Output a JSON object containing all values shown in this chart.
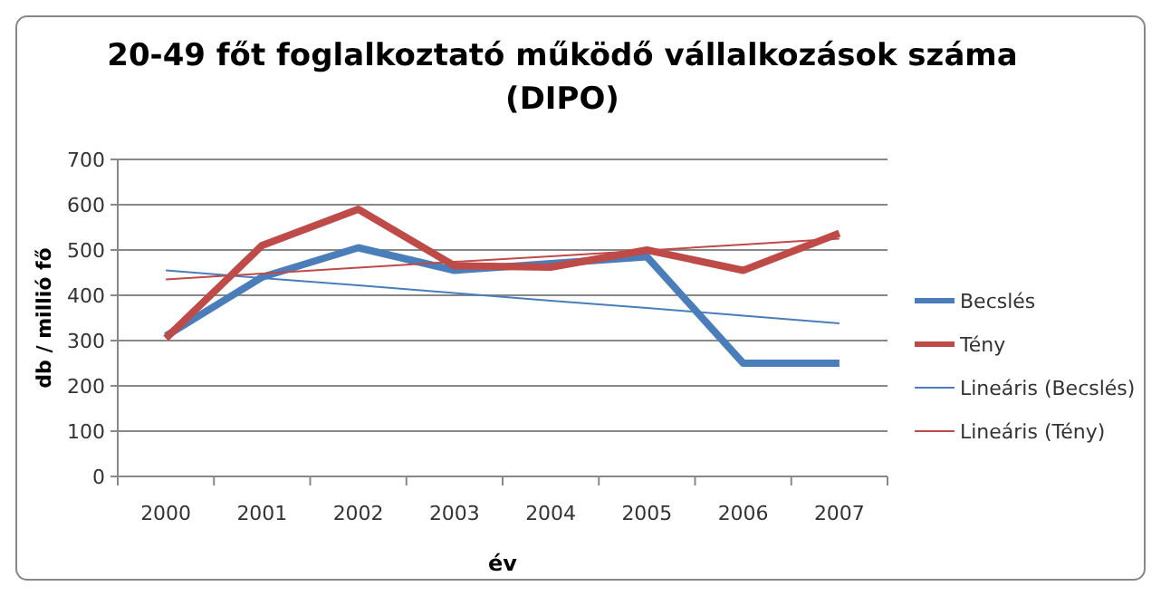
{
  "chart_data": {
    "type": "line",
    "title": "20-49 főt foglalkoztató  működő  vállalkozások  száma (DIPO)",
    "xlabel": "év",
    "ylabel": "db / millió fő",
    "categories": [
      "2000",
      "2001",
      "2002",
      "2003",
      "2004",
      "2005",
      "2006",
      "2007"
    ],
    "series": [
      {
        "name": "Becslés",
        "color": "#4a7ebb",
        "values": [
          310,
          440,
          505,
          455,
          470,
          485,
          250,
          250
        ]
      },
      {
        "name": "Tény",
        "color": "#be4b48",
        "values": [
          305,
          510,
          590,
          465,
          462,
          500,
          455,
          537
        ]
      },
      {
        "name": "Lineáris (Becslés)",
        "color": "#4a7ebb",
        "values": [
          455,
          438,
          422,
          405,
          388,
          372,
          355,
          338
        ]
      },
      {
        "name": "Lineáris (Tény)",
        "color": "#be4b48",
        "values": [
          435,
          448,
          461,
          474,
          486,
          499,
          512,
          525
        ]
      }
    ],
    "ylim": [
      0,
      700
    ],
    "yticks": [
      0,
      100,
      200,
      300,
      400,
      500,
      600,
      700
    ],
    "grid": "y",
    "legend": "right",
    "marker": "none",
    "line_style": "solid"
  }
}
